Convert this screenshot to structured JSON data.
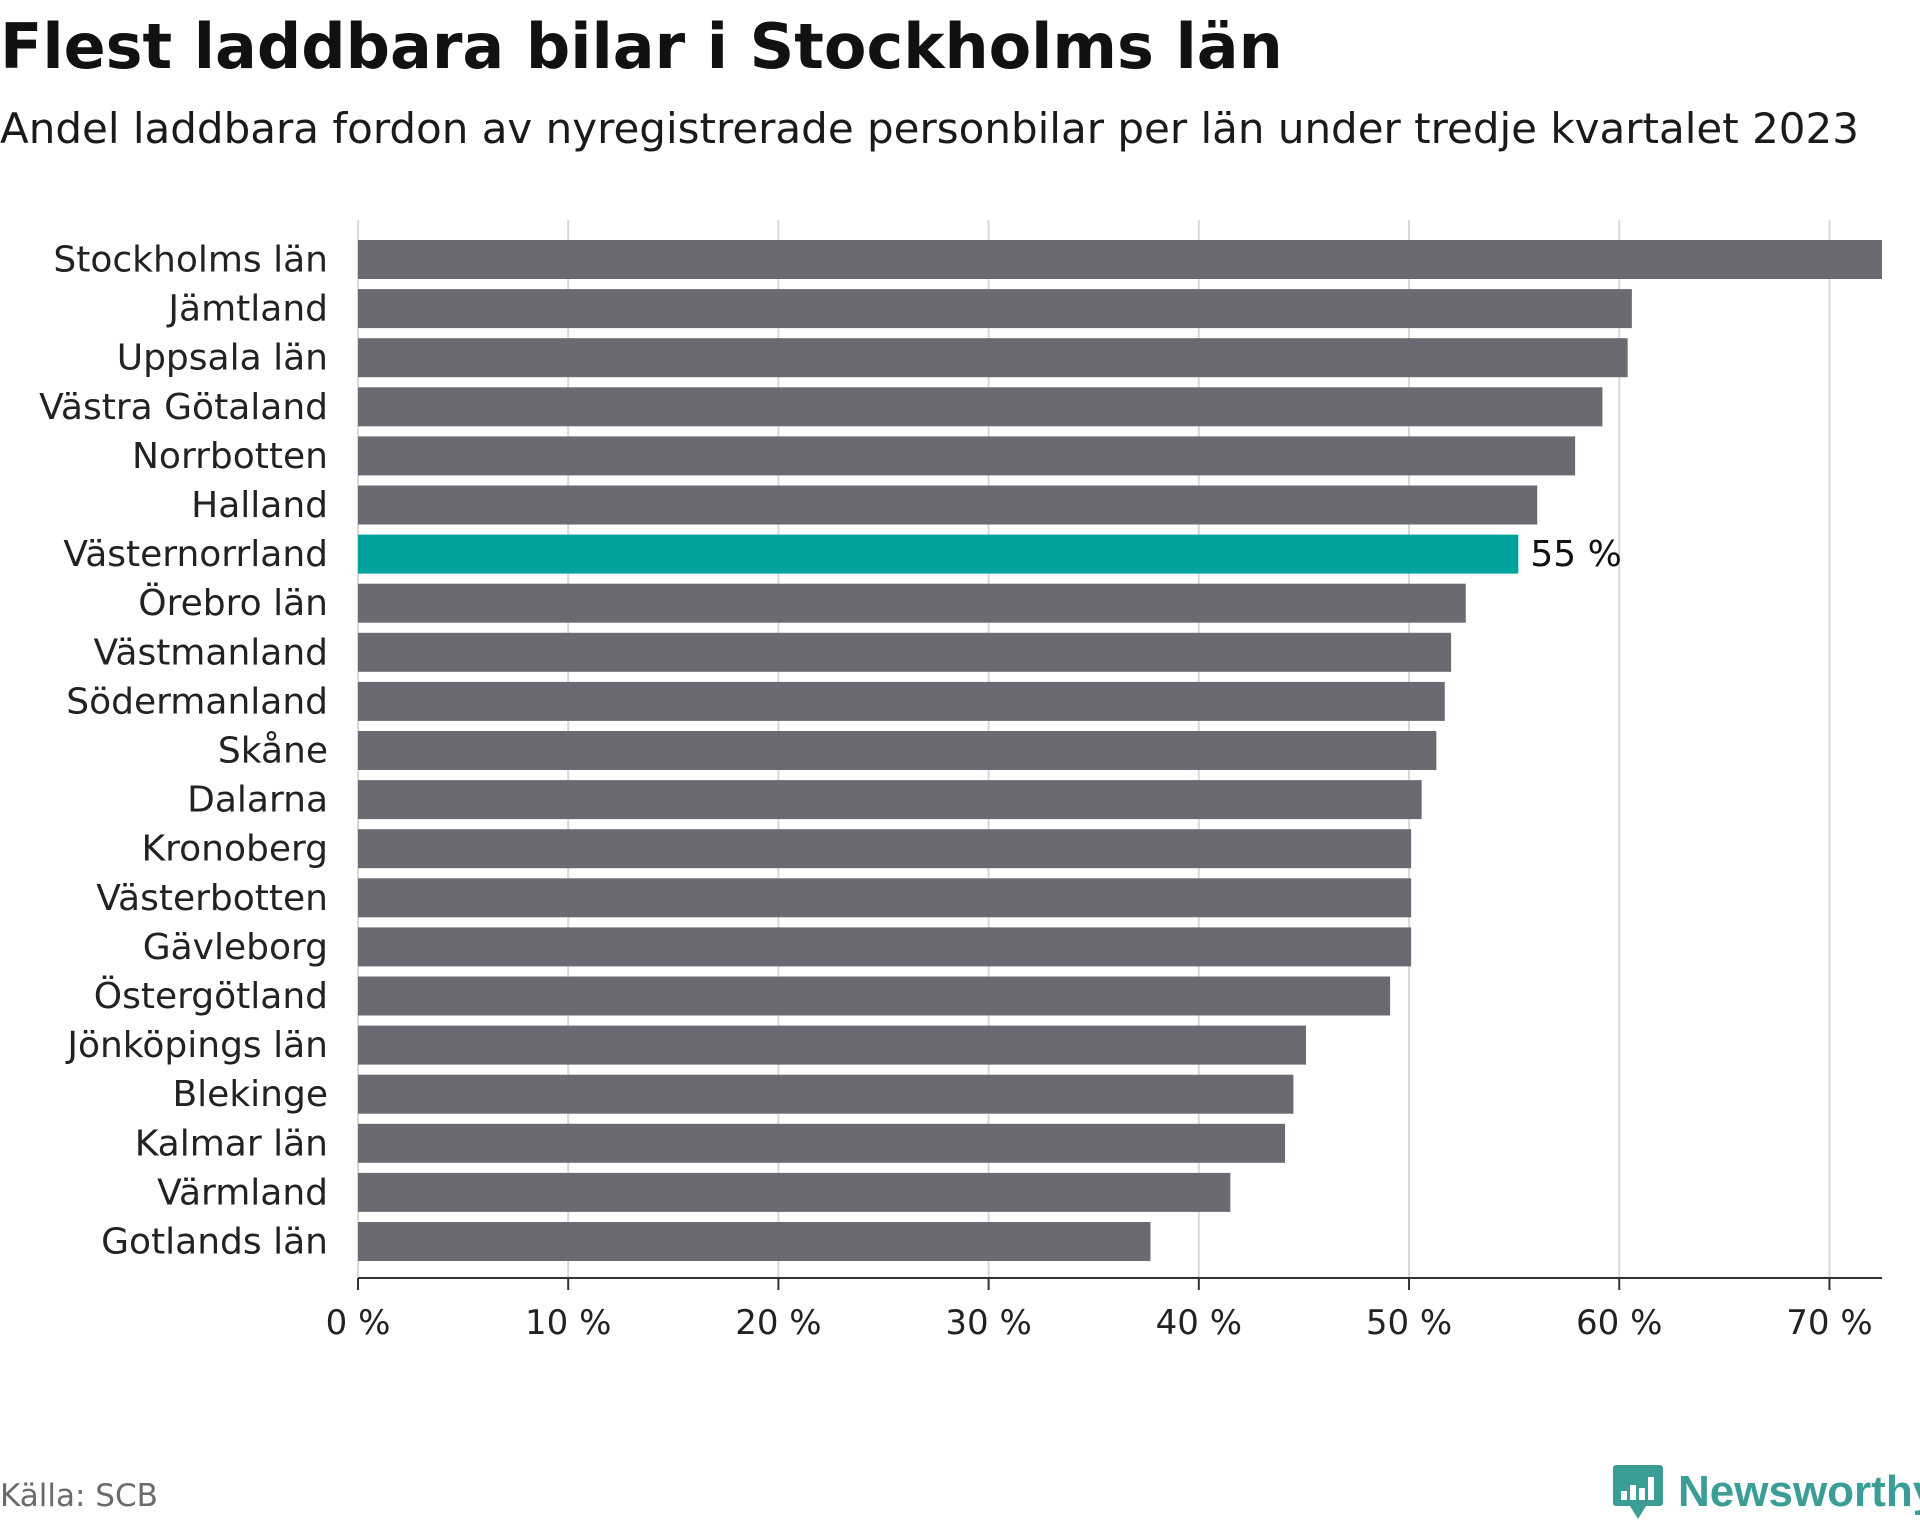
{
  "title": "Flest laddbara bilar i Stockholms län",
  "subtitle": "Andel laddbara fordon av nyregistrerade personbilar per län under tredje kvartalet 2023",
  "source": "Källa: SCB",
  "brand": "Newsworthy",
  "brand_icon": "bar-chart-icon",
  "colors": {
    "bar": "#6b6a73",
    "highlight": "#00a39b",
    "grid": "#d9d9d9",
    "axis": "#333333",
    "brand": "#3a9e97"
  },
  "chart_data": {
    "type": "bar",
    "orientation": "horizontal",
    "title": "Flest laddbara bilar i Stockholms län",
    "subtitle": "Andel laddbara fordon av nyregistrerade personbilar per län under tredje kvartalet 2023",
    "xlabel": "",
    "ylabel": "",
    "xlim": [
      0,
      72.5
    ],
    "xticks": [
      0,
      10,
      20,
      30,
      40,
      50,
      60,
      70
    ],
    "tick_suffix": " %",
    "grid": true,
    "highlight": "Västernorrland",
    "highlight_label": "55 %",
    "categories": [
      "Stockholms län",
      "Jämtland",
      "Uppsala län",
      "Västra Götaland",
      "Norrbotten",
      "Halland",
      "Västernorrland",
      "Örebro län",
      "Västmanland",
      "Södermanland",
      "Skåne",
      "Dalarna",
      "Kronoberg",
      "Västerbotten",
      "Gävleborg",
      "Östergötland",
      "Jönköpings län",
      "Blekinge",
      "Kalmar län",
      "Värmland",
      "Gotlands län"
    ],
    "values": [
      72.5,
      60.6,
      60.4,
      59.2,
      57.9,
      56.1,
      55.2,
      52.7,
      52.0,
      51.7,
      51.3,
      50.6,
      50.1,
      50.1,
      50.1,
      49.1,
      45.1,
      44.5,
      44.1,
      41.5,
      37.7
    ]
  }
}
